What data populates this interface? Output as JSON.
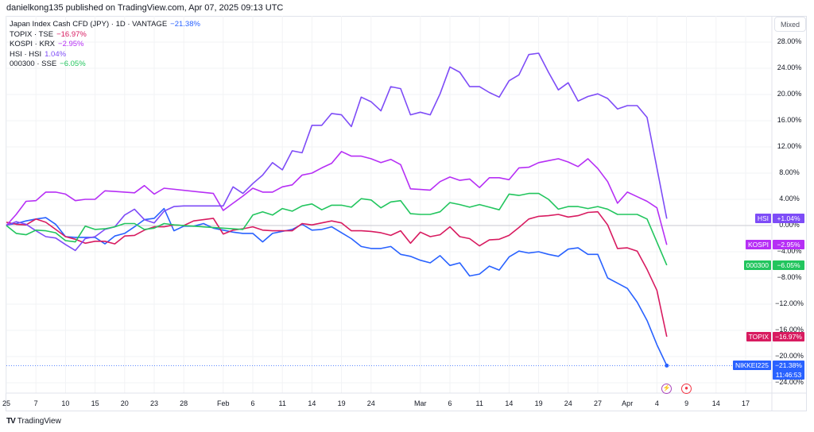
{
  "header": {
    "published": "danielkong135 published on TradingView.com, Apr 07, 2025 09:13 UTC"
  },
  "legend": [
    {
      "label": "Japan Index Cash CFD (JPY) · 1D · VANTAGE",
      "value": "−21.38%",
      "color": "#2962ff"
    },
    {
      "label": "TOPIX · TSE",
      "value": "−16.97%",
      "color": "#d81b60"
    },
    {
      "label": "KOSPI · KRX",
      "value": "−2.95%",
      "color": "#b62ff5"
    },
    {
      "label": "HSI · HSI",
      "value": "1.04%",
      "color": "#7e4cf7"
    },
    {
      "label": "000300 · SSE",
      "value": "−6.05%",
      "color": "#22c55e"
    }
  ],
  "scale_mode": "Mixed",
  "footer": {
    "brand": "TradingView"
  },
  "events": [
    {
      "name": "lightning-event-icon",
      "glyph": "⚡",
      "color": "#ab47bc",
      "date": "2025-04-07"
    },
    {
      "name": "record-event-icon",
      "glyph": "●",
      "color": "#f23645",
      "date": "2025-04-09"
    }
  ],
  "chart_data": {
    "type": "line",
    "ylabel_unit": "%",
    "ylim": [
      -26,
      30
    ],
    "yticks": [
      {
        "value": 28,
        "label": "28.00%"
      },
      {
        "value": 24,
        "label": "24.00%"
      },
      {
        "value": 20,
        "label": "20.00%"
      },
      {
        "value": 16,
        "label": "16.00%"
      },
      {
        "value": 12,
        "label": "12.00%"
      },
      {
        "value": 8,
        "label": "8.00%"
      },
      {
        "value": 4,
        "label": "4.00%"
      },
      {
        "value": 0,
        "label": "0.00%"
      },
      {
        "value": -4,
        "label": "−4.00%"
      },
      {
        "value": -8,
        "label": "−8.00%"
      },
      {
        "value": -12,
        "label": "−12.00%"
      },
      {
        "value": -16,
        "label": "−16.00%"
      },
      {
        "value": -20,
        "label": "−20.00%"
      },
      {
        "value": -24,
        "label": "−24.00%"
      }
    ],
    "xticks": [
      {
        "label": "25",
        "date": "2025-01-02"
      },
      {
        "label": "7",
        "date": "2025-01-07"
      },
      {
        "label": "10",
        "date": "2025-01-10"
      },
      {
        "label": "15",
        "date": "2025-01-15"
      },
      {
        "label": "20",
        "date": "2025-01-20"
      },
      {
        "label": "23",
        "date": "2025-01-23"
      },
      {
        "label": "28",
        "date": "2025-01-28"
      },
      {
        "label": "Feb",
        "date": "2025-02-03"
      },
      {
        "label": "6",
        "date": "2025-02-06"
      },
      {
        "label": "11",
        "date": "2025-02-11"
      },
      {
        "label": "14",
        "date": "2025-02-14"
      },
      {
        "label": "19",
        "date": "2025-02-19"
      },
      {
        "label": "24",
        "date": "2025-02-24"
      },
      {
        "label": "Mar",
        "date": "2025-03-03"
      },
      {
        "label": "6",
        "date": "2025-03-06"
      },
      {
        "label": "11",
        "date": "2025-03-11"
      },
      {
        "label": "14",
        "date": "2025-03-14"
      },
      {
        "label": "19",
        "date": "2025-03-19"
      },
      {
        "label": "24",
        "date": "2025-03-24"
      },
      {
        "label": "27",
        "date": "2025-03-27"
      },
      {
        "label": "Apr",
        "date": "2025-04-01"
      },
      {
        "label": "4",
        "date": "2025-04-04"
      },
      {
        "label": "9",
        "date": "2025-04-09"
      },
      {
        "label": "14",
        "date": "2025-04-14"
      },
      {
        "label": "17",
        "date": "2025-04-17"
      }
    ],
    "x": [
      "2025-01-02",
      "2025-01-03",
      "2025-01-06",
      "2025-01-07",
      "2025-01-08",
      "2025-01-09",
      "2025-01-10",
      "2025-01-13",
      "2025-01-14",
      "2025-01-15",
      "2025-01-16",
      "2025-01-17",
      "2025-01-20",
      "2025-01-21",
      "2025-01-22",
      "2025-01-23",
      "2025-01-24",
      "2025-01-27",
      "2025-01-28",
      "2025-01-29",
      "2025-01-30",
      "2025-01-31",
      "2025-02-03",
      "2025-02-04",
      "2025-02-05",
      "2025-02-06",
      "2025-02-07",
      "2025-02-10",
      "2025-02-11",
      "2025-02-12",
      "2025-02-13",
      "2025-02-14",
      "2025-02-17",
      "2025-02-18",
      "2025-02-19",
      "2025-02-20",
      "2025-02-21",
      "2025-02-24",
      "2025-02-25",
      "2025-02-26",
      "2025-02-27",
      "2025-02-28",
      "2025-03-03",
      "2025-03-04",
      "2025-03-05",
      "2025-03-06",
      "2025-03-07",
      "2025-03-10",
      "2025-03-11",
      "2025-03-12",
      "2025-03-13",
      "2025-03-14",
      "2025-03-17",
      "2025-03-18",
      "2025-03-19",
      "2025-03-20",
      "2025-03-21",
      "2025-03-24",
      "2025-03-25",
      "2025-03-26",
      "2025-03-27",
      "2025-03-28",
      "2025-03-31",
      "2025-04-01",
      "2025-04-02",
      "2025-04-03",
      "2025-04-04",
      "2025-04-07"
    ],
    "series": [
      {
        "name": "NIKKEI225",
        "last_label": "−21.38%",
        "countdown": "11:46:53",
        "color": "#2962ff",
        "last_line": true,
        "values": [
          0.1,
          0.3,
          0.7,
          1.0,
          1.2,
          0.2,
          -1.7,
          -1.8,
          -1.8,
          -1.8,
          -2.8,
          -1.6,
          -1.2,
          -0.2,
          0.9,
          1.1,
          2.6,
          -0.8,
          -0.1,
          -0.1,
          0.3,
          -0.4,
          -0.7,
          -1.0,
          -1.2,
          -1.2,
          -2.5,
          -1.2,
          -0.9,
          -0.6,
          0.2,
          -0.7,
          -0.6,
          -0.2,
          -1.1,
          -2.0,
          -3.2,
          -3.5,
          -3.5,
          -3.2,
          -4.4,
          -4.7,
          -5.3,
          -5.7,
          -4.6,
          -6.1,
          -5.7,
          -7.7,
          -7.4,
          -6.2,
          -6.8,
          -4.8,
          -3.9,
          -4.2,
          -4.0,
          -4.4,
          -4.7,
          -3.6,
          -3.4,
          -4.4,
          -4.4,
          -8.0,
          -8.8,
          -9.6,
          -11.7,
          -14.5,
          -18.2,
          -21.38
        ]
      },
      {
        "name": "TOPIX",
        "last_label": "−16.97%",
        "color": "#d81b60",
        "values": [
          0.5,
          0.2,
          0.1,
          1.0,
          0.5,
          -0.6,
          -1.7,
          -2.1,
          -2.7,
          -2.4,
          -2.4,
          -2.8,
          -1.6,
          -1.5,
          -0.7,
          -0.2,
          -0.2,
          0.1,
          0.0,
          0.7,
          0.9,
          1.1,
          -1.3,
          -0.7,
          -0.5,
          -0.2,
          -0.7,
          -0.8,
          -0.8,
          -0.8,
          0.3,
          0.1,
          0.4,
          0.7,
          0.4,
          -0.8,
          -0.8,
          -0.9,
          -1.1,
          -1.5,
          -0.8,
          -2.7,
          -1.0,
          -1.7,
          -1.4,
          -0.2,
          -1.7,
          -2.0,
          -3.1,
          -2.2,
          -2.1,
          -1.5,
          -0.3,
          1.0,
          1.4,
          1.5,
          1.7,
          1.3,
          1.5,
          2.0,
          2.1,
          0.1,
          -3.5,
          -3.4,
          -3.9,
          -6.7,
          -9.9,
          -16.97
        ]
      },
      {
        "name": "KOSPI",
        "last_label": "−2.95%",
        "color": "#b62ff5",
        "values": [
          0.0,
          1.7,
          3.7,
          3.8,
          5.1,
          5.1,
          4.8,
          3.8,
          4.0,
          4.0,
          5.3,
          5.2,
          5.1,
          5.0,
          6.1,
          4.8,
          5.7,
          null,
          null,
          null,
          null,
          4.9,
          2.3,
          3.4,
          4.5,
          5.7,
          5.1,
          5.1,
          5.9,
          6.2,
          7.7,
          8.0,
          8.8,
          9.5,
          11.3,
          10.6,
          10.6,
          10.2,
          9.6,
          10.1,
          9.3,
          5.6,
          5.5,
          5.4,
          6.7,
          7.4,
          6.9,
          7.1,
          5.8,
          7.3,
          7.3,
          7.0,
          8.8,
          8.9,
          9.6,
          9.9,
          10.2,
          9.7,
          9.0,
          10.2,
          8.7,
          6.7,
          3.4,
          5.1,
          4.4,
          3.7,
          2.7,
          -2.95
        ]
      },
      {
        "name": "HSI",
        "last_label": "+1.04%",
        "color": "#7e4cf7",
        "values": [
          0.0,
          0.6,
          0.2,
          -0.8,
          -1.7,
          -1.9,
          -2.9,
          -3.8,
          -2.0,
          -1.7,
          -0.6,
          -0.2,
          1.6,
          2.5,
          0.9,
          0.4,
          2.2,
          2.9,
          3.0,
          null,
          null,
          null,
          3.0,
          5.9,
          4.9,
          6.4,
          7.7,
          9.6,
          8.5,
          11.4,
          11.1,
          15.3,
          15.3,
          17.1,
          16.9,
          15.1,
          19.6,
          18.9,
          17.5,
          21.2,
          20.9,
          16.9,
          17.3,
          16.9,
          20.1,
          24.2,
          23.4,
          21.2,
          21.2,
          20.3,
          19.6,
          22.1,
          23.0,
          26.1,
          26.3,
          23.4,
          20.7,
          21.8,
          19.0,
          19.7,
          20.1,
          19.4,
          17.8,
          18.3,
          18.3,
          16.5,
          null,
          1.04
        ]
      },
      {
        "name": "000300",
        "last_label": "−6.05%",
        "color": "#22c55e",
        "values": [
          0.0,
          -1.2,
          -1.4,
          -0.7,
          -0.8,
          -1.1,
          -2.3,
          -2.5,
          -0.1,
          -0.6,
          -0.5,
          -0.2,
          0.3,
          0.3,
          -0.6,
          -0.4,
          0.3,
          0.1,
          null,
          null,
          null,
          null,
          null,
          null,
          -0.6,
          1.6,
          2.1,
          1.6,
          2.6,
          2.2,
          3.0,
          3.3,
          2.4,
          3.1,
          3.1,
          2.8,
          4.1,
          3.9,
          2.7,
          3.6,
          3.8,
          1.8,
          1.7,
          1.7,
          2.1,
          3.5,
          3.2,
          2.8,
          3.2,
          2.8,
          2.4,
          4.8,
          4.6,
          4.9,
          4.9,
          4.0,
          2.5,
          2.9,
          2.9,
          2.6,
          2.9,
          2.5,
          1.7,
          1.7,
          1.7,
          1.0,
          null,
          -6.05
        ]
      }
    ]
  }
}
